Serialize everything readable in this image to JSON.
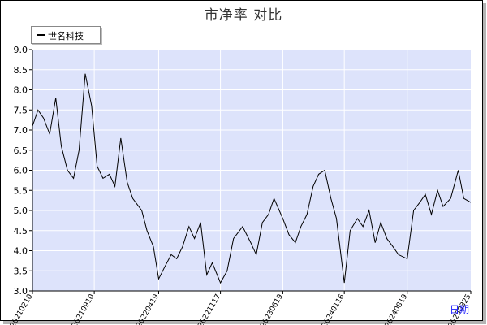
{
  "chart_data": {
    "type": "line",
    "title": "市净率  对比",
    "legend": [
      "世名科技"
    ],
    "xlabel": "日期",
    "ylabel": "",
    "ylim": [
      3.0,
      9.0
    ],
    "yticks": [
      "3.0",
      "3.5",
      "4.0",
      "4.5",
      "5.0",
      "5.5",
      "6.0",
      "6.5",
      "7.0",
      "7.5",
      "8.0",
      "8.5",
      "9.0"
    ],
    "xticks": [
      "20210210",
      "20210910",
      "20220419",
      "20221117",
      "20230619",
      "20240116",
      "20240819",
      "20250325"
    ],
    "grid": true,
    "legend_position": "top-left",
    "colors": {
      "line": "#000000",
      "plot_bg": "#dde3fb",
      "grid": "#ffffff"
    },
    "series": [
      {
        "name": "世名科技",
        "x": [
          "20210210",
          "20210301",
          "20210320",
          "20210410",
          "20210501",
          "20210520",
          "20210610",
          "20210701",
          "20210720",
          "20210810",
          "20210901",
          "20210920",
          "20211010",
          "20211101",
          "20211120",
          "20211210",
          "20220101",
          "20220120",
          "20220220",
          "20220310",
          "20220401",
          "20220419",
          "20220510",
          "20220601",
          "20220620",
          "20220710",
          "20220801",
          "20220820",
          "20220910",
          "20221001",
          "20221020",
          "20221117",
          "20221210",
          "20230101",
          "20230201",
          "20230301",
          "20230320",
          "20230410",
          "20230501",
          "20230520",
          "20230619",
          "20230710",
          "20230801",
          "20230820",
          "20230910",
          "20231001",
          "20231020",
          "20231110",
          "20231201",
          "20231220",
          "20240116",
          "20240205",
          "20240301",
          "20240320",
          "20240410",
          "20240501",
          "20240520",
          "20240610",
          "20240701",
          "20240720",
          "20240819",
          "20240910",
          "20241001",
          "20241020",
          "20241110",
          "20241201",
          "20241220",
          "20250115",
          "20250210",
          "20250301",
          "20250325"
        ],
        "y": [
          7.1,
          7.5,
          7.3,
          6.9,
          7.8,
          6.6,
          6.0,
          5.8,
          6.5,
          8.4,
          7.6,
          6.1,
          5.8,
          5.9,
          5.6,
          6.8,
          5.7,
          5.3,
          5.0,
          4.5,
          4.1,
          3.3,
          3.6,
          3.9,
          3.8,
          4.1,
          4.6,
          4.3,
          4.7,
          3.4,
          3.7,
          3.2,
          3.5,
          4.3,
          4.6,
          4.2,
          3.9,
          4.7,
          4.9,
          5.3,
          4.8,
          4.4,
          4.2,
          4.6,
          4.9,
          5.6,
          5.9,
          6.0,
          5.3,
          4.8,
          3.2,
          4.5,
          4.8,
          4.6,
          5.0,
          4.2,
          4.7,
          4.3,
          4.1,
          3.9,
          3.8,
          5.0,
          5.2,
          5.4,
          4.9,
          5.5,
          5.1,
          5.3,
          6.0,
          5.3,
          5.2
        ]
      }
    ]
  }
}
